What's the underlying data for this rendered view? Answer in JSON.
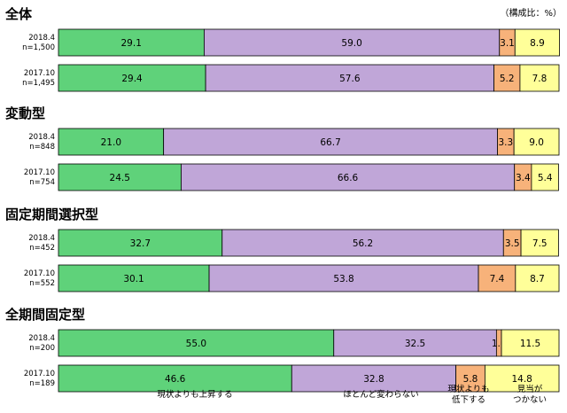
{
  "chart_data": {
    "type": "bar",
    "orientation": "horizontal",
    "stacked": true,
    "unit_label": "（構成比：%）",
    "xlim": [
      0,
      100
    ],
    "legend_placement": "bottom",
    "series": [
      {
        "name": "現状よりも上昇する",
        "color": "#5fd27a"
      },
      {
        "name": "ほとんど変わらない",
        "color": "#c0a6d8"
      },
      {
        "name": "現状よりも\n低下する",
        "color": "#f7b27a"
      },
      {
        "name": "見当が\nつかない",
        "color": "#ffff99"
      }
    ],
    "groups": [
      {
        "title": "全体",
        "rows": [
          {
            "period": "2018.4",
            "n": "n=1,500",
            "values": [
              29.1,
              59.0,
              3.1,
              8.9
            ]
          },
          {
            "period": "2017.10",
            "n": "n=1,495",
            "values": [
              29.4,
              57.6,
              5.2,
              7.8
            ]
          }
        ]
      },
      {
        "title": "変動型",
        "rows": [
          {
            "period": "2018.4",
            "n": "n=848",
            "values": [
              21.0,
              66.7,
              3.3,
              9.0
            ]
          },
          {
            "period": "2017.10",
            "n": "n=754",
            "values": [
              24.5,
              66.6,
              3.4,
              5.4
            ]
          }
        ]
      },
      {
        "title": "固定期間選択型",
        "rows": [
          {
            "period": "2018.4",
            "n": "n=452",
            "values": [
              32.7,
              56.2,
              3.5,
              7.5
            ]
          },
          {
            "period": "2017.10",
            "n": "n=552",
            "values": [
              30.1,
              53.8,
              7.4,
              8.7
            ]
          }
        ]
      },
      {
        "title": "全期間固定型",
        "rows": [
          {
            "period": "2018.4",
            "n": "n=200",
            "values": [
              55.0,
              32.5,
              1.0,
              11.5
            ]
          },
          {
            "period": "2017.10",
            "n": "n=189",
            "values": [
              46.6,
              32.8,
              5.8,
              14.8
            ]
          }
        ]
      }
    ]
  }
}
